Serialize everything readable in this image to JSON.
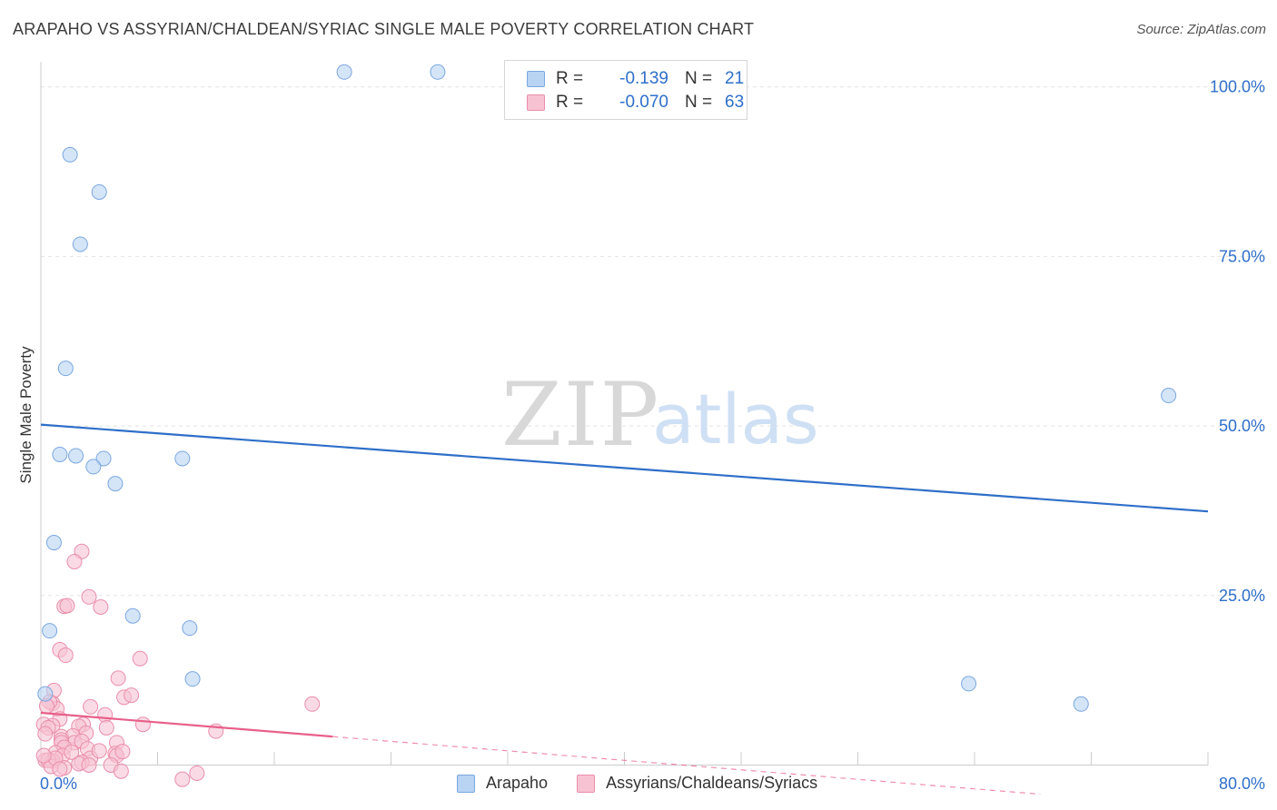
{
  "title": "ARAPAHO VS ASSYRIAN/CHALDEAN/SYRIAC SINGLE MALE POVERTY CORRELATION CHART",
  "source": "Source: ZipAtlas.com",
  "watermark": {
    "zip": "ZIP",
    "atlas": "atlas"
  },
  "legend": {
    "rows": [
      {
        "r_label": "R =",
        "r_value": "-0.139",
        "n_label": "N =",
        "n_value": "21"
      },
      {
        "r_label": "R =",
        "r_value": "-0.070",
        "n_label": "N =",
        "n_value": "63"
      }
    ]
  },
  "colors": {
    "arapaho_fill": "#b9d3f3",
    "arapaho_stroke": "#7aa7e0",
    "arapaho_line": "#2f6fc9",
    "assyrian_fill": "#f7c3d3",
    "assyrian_stroke": "#ea8eab",
    "assyrian_line": "#e8608a",
    "axis_label": "#2f6fc9"
  },
  "chart_data": {
    "type": "scatter",
    "title": "ARAPAHO VS ASSYRIAN/CHALDEAN/SYRIAC SINGLE MALE POVERTY CORRELATION CHART",
    "xlabel": "",
    "ylabel": "Single Male Poverty",
    "xlim": [
      0,
      80
    ],
    "ylim": [
      0,
      100
    ],
    "x_tick_labels": [
      "0.0%",
      "80.0%"
    ],
    "y_tick_labels": [
      "25.0%",
      "50.0%",
      "75.0%",
      "100.0%"
    ],
    "y_ticks": [
      25,
      50,
      75,
      100
    ],
    "grid": true,
    "legend_position": "top-center",
    "series": [
      {
        "name": "Arapaho",
        "r": -0.139,
        "n": 21,
        "trend": {
          "x": [
            0,
            80
          ],
          "y": [
            50.2,
            37.4
          ]
        },
        "points": [
          [
            20.8,
            102.2
          ],
          [
            27.2,
            102.2
          ],
          [
            2.0,
            90.0
          ],
          [
            4.0,
            84.5
          ],
          [
            2.7,
            76.8
          ],
          [
            1.7,
            58.5
          ],
          [
            77.3,
            54.5
          ],
          [
            1.3,
            45.8
          ],
          [
            2.4,
            45.6
          ],
          [
            4.3,
            45.2
          ],
          [
            9.7,
            45.2
          ],
          [
            3.6,
            44.0
          ],
          [
            5.1,
            41.5
          ],
          [
            0.9,
            32.8
          ],
          [
            6.3,
            22.0
          ],
          [
            10.2,
            20.2
          ],
          [
            0.6,
            19.8
          ],
          [
            10.4,
            12.7
          ],
          [
            63.6,
            12.0
          ],
          [
            71.3,
            9.0
          ],
          [
            0.3,
            10.5
          ]
        ]
      },
      {
        "name": "Assyrians/Chaldeans/Syriacs",
        "r": -0.07,
        "n": 63,
        "trend": {
          "x": [
            0,
            20
          ],
          "y": [
            7.7,
            4.2
          ]
        },
        "trend_extended": {
          "x": [
            20,
            68.5
          ],
          "y": [
            4.2,
            -4.3
          ]
        },
        "points": [
          [
            2.8,
            31.5
          ],
          [
            2.3,
            30.0
          ],
          [
            3.3,
            24.8
          ],
          [
            1.6,
            23.4
          ],
          [
            1.8,
            23.5
          ],
          [
            4.1,
            23.3
          ],
          [
            1.3,
            17.0
          ],
          [
            1.7,
            16.2
          ],
          [
            6.8,
            15.7
          ],
          [
            5.3,
            12.8
          ],
          [
            0.9,
            11.0
          ],
          [
            5.7,
            10.0
          ],
          [
            6.2,
            10.3
          ],
          [
            18.6,
            9.0
          ],
          [
            0.8,
            9.1
          ],
          [
            1.1,
            8.3
          ],
          [
            0.6,
            9.3
          ],
          [
            3.4,
            8.6
          ],
          [
            0.4,
            8.7
          ],
          [
            1.3,
            6.8
          ],
          [
            4.4,
            7.4
          ],
          [
            0.2,
            6.0
          ],
          [
            0.8,
            5.8
          ],
          [
            2.9,
            6.0
          ],
          [
            0.5,
            5.5
          ],
          [
            1.4,
            4.2
          ],
          [
            2.6,
            5.7
          ],
          [
            3.1,
            4.7
          ],
          [
            2.2,
            4.3
          ],
          [
            4.5,
            5.5
          ],
          [
            7.0,
            6.0
          ],
          [
            12.0,
            5.0
          ],
          [
            0.3,
            4.6
          ],
          [
            2.3,
            3.3
          ],
          [
            1.4,
            3.7
          ],
          [
            2.8,
            3.5
          ],
          [
            5.2,
            3.3
          ],
          [
            1.4,
            3.3
          ],
          [
            1.6,
            2.6
          ],
          [
            3.2,
            2.4
          ],
          [
            5.1,
            1.7
          ],
          [
            1.0,
            1.8
          ],
          [
            1.5,
            1.4
          ],
          [
            3.4,
            1.0
          ],
          [
            5.2,
            1.4
          ],
          [
            0.3,
            0.7
          ],
          [
            0.8,
            0.6
          ],
          [
            0.5,
            0.7
          ],
          [
            2.8,
            0.4
          ],
          [
            2.6,
            0.2
          ],
          [
            4.8,
            0.0
          ],
          [
            1.6,
            -0.4
          ],
          [
            3.3,
            0.0
          ],
          [
            0.7,
            -0.2
          ],
          [
            1.0,
            1.0
          ],
          [
            0.2,
            1.4
          ],
          [
            2.1,
            1.9
          ],
          [
            4.0,
            2.1
          ],
          [
            5.6,
            2.0
          ],
          [
            1.3,
            -0.6
          ],
          [
            5.5,
            -0.9
          ],
          [
            9.7,
            -2.1
          ],
          [
            10.7,
            -1.2
          ]
        ]
      }
    ]
  }
}
